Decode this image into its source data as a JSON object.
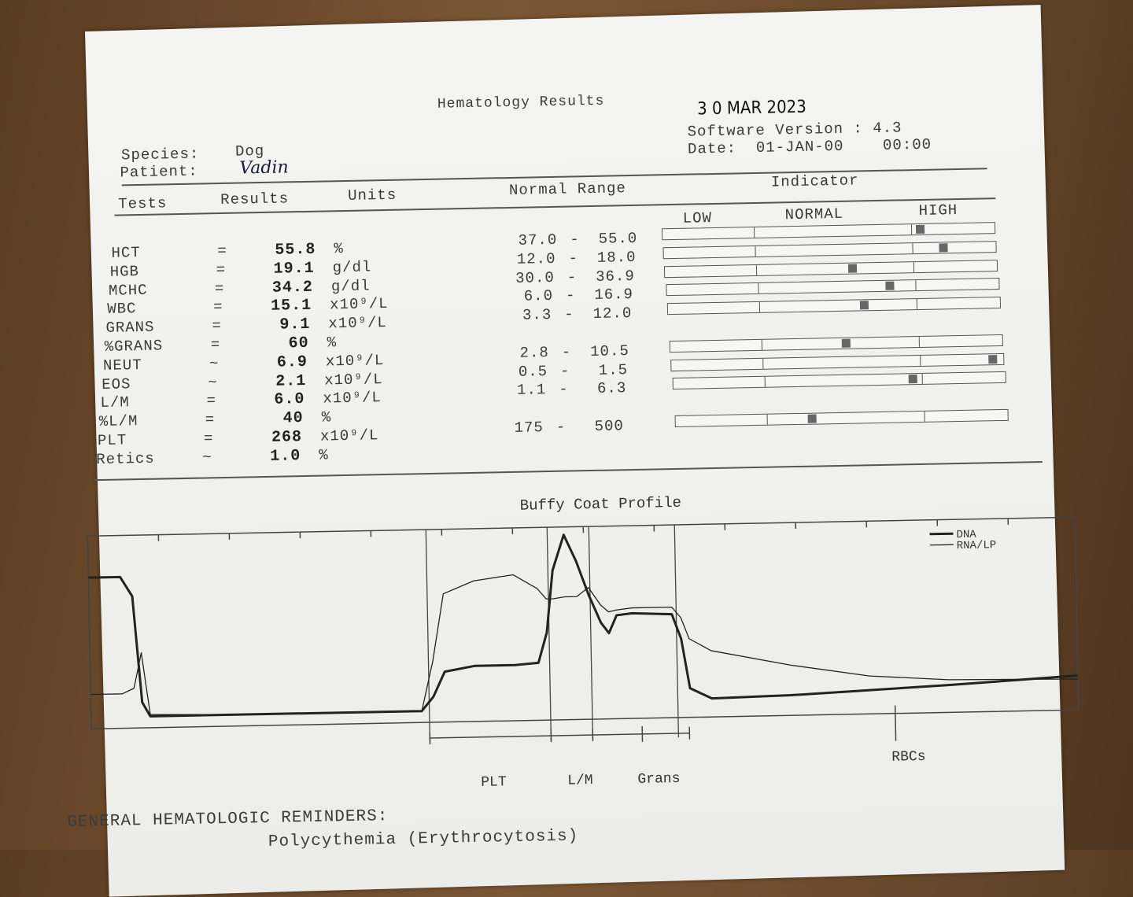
{
  "header": {
    "title": "Hematology Results",
    "stamp_date": "3 0 MAR 2023",
    "software_version": "Software Version : 4.3",
    "date": "Date:  01-JAN-00    00:00"
  },
  "patient": {
    "species_label": "Species:",
    "species": "Dog",
    "patient_label": "Patient:",
    "patient_name": "Vadin"
  },
  "columns": [
    "Tests",
    "Results",
    "Units",
    "Normal Range",
    "Indicator"
  ],
  "indicator_labels": [
    "LOW",
    "NORMAL",
    "HIGH"
  ],
  "rows": [
    {
      "test": "HCT",
      "relation": "=",
      "result": "55.8",
      "unit": "%",
      "range_low": "37.0",
      "range_high": "55.0"
    },
    {
      "test": "HGB",
      "relation": "=",
      "result": "19.1",
      "unit": "g/dl",
      "range_low": "12.0",
      "range_high": "18.0"
    },
    {
      "test": "MCHC",
      "relation": "=",
      "result": "34.2",
      "unit": "g/dl",
      "range_low": "30.0",
      "range_high": "36.9"
    },
    {
      "test": "WBC",
      "relation": "=",
      "result": "15.1",
      "unit": "x10⁹/L",
      "range_low": "6.0",
      "range_high": "16.9"
    },
    {
      "test": "GRANS",
      "relation": "=",
      "result": "9.1",
      "unit": "x10⁹/L",
      "range_low": "3.3",
      "range_high": "12.0"
    },
    {
      "test": "%GRANS",
      "relation": "=",
      "result": "60",
      "unit": "%"
    },
    {
      "test": "NEUT",
      "relation": "~",
      "result": "6.9",
      "unit": "x10⁹/L",
      "range_low": "2.8",
      "range_high": "10.5"
    },
    {
      "test": "EOS",
      "relation": "~",
      "result": "2.1",
      "unit": "x10⁹/L",
      "range_low": "0.5",
      "range_high": "1.5"
    },
    {
      "test": "L/M",
      "relation": "=",
      "result": "6.0",
      "unit": "x10⁹/L",
      "range_low": "1.1",
      "range_high": "6.3"
    },
    {
      "test": "%L/M",
      "relation": "=",
      "result": "40",
      "unit": "%"
    },
    {
      "test": "PLT",
      "relation": "=",
      "result": "268",
      "unit": "x10⁹/L",
      "range_low": "175",
      "range_high": "500"
    },
    {
      "test": "Retics",
      "relation": "~",
      "result": "1.0",
      "unit": "%"
    }
  ],
  "buffy_coat": {
    "title": "Buffy Coat Profile",
    "xlim": [
      0,
      100
    ],
    "ylim": [
      0,
      100
    ],
    "x": [
      0,
      3.2,
      4.4,
      5.2,
      6.0,
      15.1,
      33.5,
      34.7,
      35.9,
      39.0,
      43.0,
      45.4,
      46.3,
      47.0,
      48.2,
      49.4,
      50.6,
      51.8,
      52.6,
      53.4,
      55.0,
      59.0,
      59.9,
      60.7,
      62.9,
      70.9,
      78.9,
      86.9,
      100
    ],
    "series": [
      {
        "name": "DNA",
        "values": [
          81,
          81,
          70,
          10,
          2,
          2,
          2,
          10,
          24,
          27,
          27,
          28,
          45,
          80,
          100,
          85,
          66,
          50,
          44,
          54,
          55,
          54,
          40,
          12,
          6,
          7,
          9,
          11,
          15
        ]
      },
      {
        "name": "RNA/LP",
        "values": [
          15,
          15,
          18,
          38,
          3,
          2,
          2,
          30,
          68,
          75,
          78,
          70,
          64,
          64,
          65,
          65,
          70,
          60,
          56,
          57,
          58,
          58,
          52,
          40,
          33,
          24,
          17,
          14,
          13
        ]
      }
    ],
    "regions": [
      "PLT",
      "L/M",
      "Grans",
      "RBCs"
    ]
  },
  "reminders": {
    "title": "GENERAL HEMATOLOGIC REMINDERS:",
    "items": [
      "Polycythemia (Erythrocytosis)"
    ]
  }
}
